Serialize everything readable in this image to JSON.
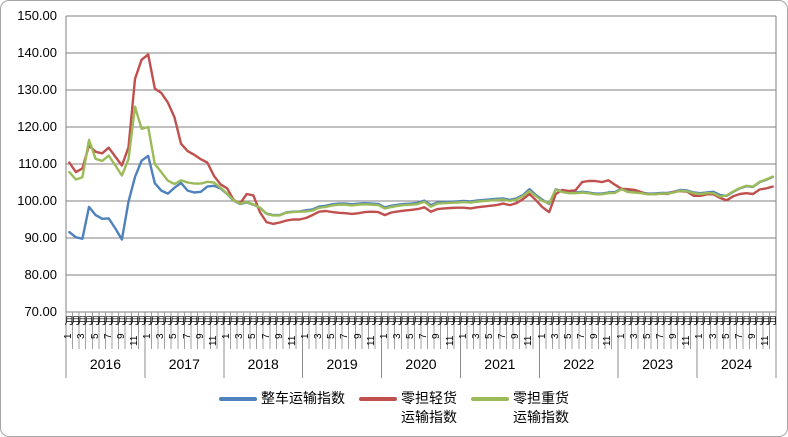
{
  "chart_data": {
    "type": "line",
    "title": "",
    "x_axis": {
      "years": [
        "2016",
        "2017",
        "2018",
        "2019",
        "2020",
        "2021",
        "2022",
        "2023",
        "2024"
      ],
      "months_per_year": 12,
      "month_suffix": "月",
      "labeled_months": [
        "1",
        "3",
        "5",
        "7",
        "9",
        "11"
      ]
    },
    "y_axis": {
      "min": 70,
      "max": 150,
      "step": 10,
      "grid": true,
      "tick_labels": [
        "150.00",
        "140.00",
        "130.00",
        "120.00",
        "110.00",
        "100.00",
        "90.00",
        "80.00",
        "70.00"
      ]
    },
    "series": [
      {
        "name": "整车运输指数",
        "color": "#4F81BD",
        "values": [
          91.6,
          90.2,
          89.8,
          98.4,
          96.2,
          95.2,
          95.3,
          92.6,
          89.6,
          99.8,
          106.5,
          110.9,
          112.2,
          104.8,
          102.8,
          102.0,
          103.6,
          104.9,
          102.8,
          102.3,
          102.5,
          103.9,
          104.1,
          103.4,
          101.9,
          100.1,
          99.2,
          99.6,
          99.0,
          98.2,
          96.6,
          96.2,
          96.2,
          96.9,
          97.1,
          97.2,
          97.5,
          97.7,
          98.5,
          98.7,
          99.1,
          99.3,
          99.3,
          99.1,
          99.3,
          99.4,
          99.3,
          99.2,
          98.3,
          98.7,
          99.0,
          99.2,
          99.3,
          99.5,
          100.1,
          98.9,
          99.6,
          99.7,
          99.8,
          99.9,
          100.0,
          99.9,
          100.1,
          100.3,
          100.4,
          100.6,
          100.7,
          100.3,
          100.7,
          101.6,
          103.2,
          101.6,
          100.3,
          99.2,
          103.2,
          102.6,
          102.3,
          102.3,
          102.5,
          102.3,
          102.0,
          102.0,
          102.3,
          102.4,
          103.3,
          102.6,
          102.5,
          102.3,
          102.0,
          102.0,
          102.2,
          102.2,
          102.5,
          103.0,
          102.8,
          102.3,
          102.1,
          102.3,
          102.5,
          101.6,
          101.4,
          102.5,
          103.4,
          104.0,
          103.8,
          105.1,
          105.7,
          106.5
        ]
      },
      {
        "name": "零担轻货运输指数",
        "color": "#C0504D",
        "values": [
          110.4,
          107.8,
          108.8,
          115.0,
          113.3,
          112.9,
          114.4,
          112.0,
          109.6,
          114.5,
          133.0,
          138.2,
          139.6,
          130.4,
          129.2,
          126.6,
          122.6,
          115.5,
          113.5,
          112.5,
          111.3,
          110.4,
          106.8,
          104.5,
          103.4,
          100.3,
          99.4,
          101.9,
          101.5,
          97.0,
          94.3,
          93.8,
          94.2,
          94.7,
          95.0,
          95.0,
          95.4,
          96.2,
          97.1,
          97.3,
          97.0,
          96.8,
          96.7,
          96.5,
          96.7,
          97.0,
          97.1,
          97.0,
          96.2,
          96.9,
          97.2,
          97.4,
          97.6,
          97.8,
          98.3,
          97.1,
          97.8,
          98.0,
          98.1,
          98.2,
          98.2,
          98.0,
          98.3,
          98.5,
          98.7,
          98.9,
          99.3,
          98.9,
          99.4,
          100.5,
          101.9,
          100.2,
          98.3,
          97.0,
          101.9,
          103.0,
          102.7,
          102.9,
          105.1,
          105.4,
          105.4,
          105.1,
          105.6,
          104.4,
          103.3,
          103.2,
          103.0,
          102.4,
          101.8,
          101.8,
          102.0,
          101.9,
          102.5,
          102.7,
          102.5,
          101.4,
          101.4,
          101.8,
          101.8,
          100.8,
          100.2,
          101.3,
          101.9,
          102.1,
          101.9,
          103.1,
          103.4,
          103.9
        ]
      },
      {
        "name": "零担重货运输指数",
        "color": "#9BBB59",
        "values": [
          107.8,
          105.8,
          106.4,
          116.5,
          111.4,
          110.8,
          112.3,
          109.6,
          106.9,
          111.3,
          125.5,
          119.5,
          120.0,
          110.0,
          107.8,
          105.5,
          104.6,
          105.6,
          105.0,
          104.7,
          104.7,
          105.2,
          105.0,
          103.6,
          102.0,
          100.2,
          99.3,
          99.7,
          99.1,
          98.2,
          96.5,
          96.1,
          96.1,
          96.8,
          97.0,
          97.1,
          97.2,
          97.4,
          98.2,
          98.4,
          98.8,
          99.0,
          99.0,
          98.8,
          99.0,
          99.1,
          99.0,
          98.9,
          98.0,
          98.4,
          98.7,
          98.9,
          99.0,
          99.2,
          99.8,
          98.5,
          99.3,
          99.4,
          99.5,
          99.6,
          99.7,
          99.6,
          99.8,
          100.0,
          100.1,
          100.3,
          100.4,
          100.0,
          100.4,
          101.3,
          102.7,
          101.3,
          100.0,
          99.4,
          103.1,
          102.4,
          102.1,
          102.1,
          102.3,
          102.1,
          101.8,
          101.8,
          102.1,
          102.2,
          103.2,
          102.4,
          102.3,
          102.1,
          101.8,
          101.8,
          102.0,
          102.0,
          102.3,
          102.8,
          102.6,
          102.1,
          101.9,
          102.1,
          102.1,
          101.2,
          101.5,
          102.6,
          103.5,
          104.1,
          103.9,
          105.2,
          105.8,
          106.6
        ]
      }
    ],
    "legend": {
      "position": "bottom",
      "items": [
        {
          "line1": "整车运输指数",
          "line2": ""
        },
        {
          "line1": "零担轻货",
          "line2": "运输指数"
        },
        {
          "line1": "零担重货",
          "line2": "运输指数"
        }
      ]
    },
    "grid_color": "#808080",
    "tick_color": "#a0a0a0"
  }
}
